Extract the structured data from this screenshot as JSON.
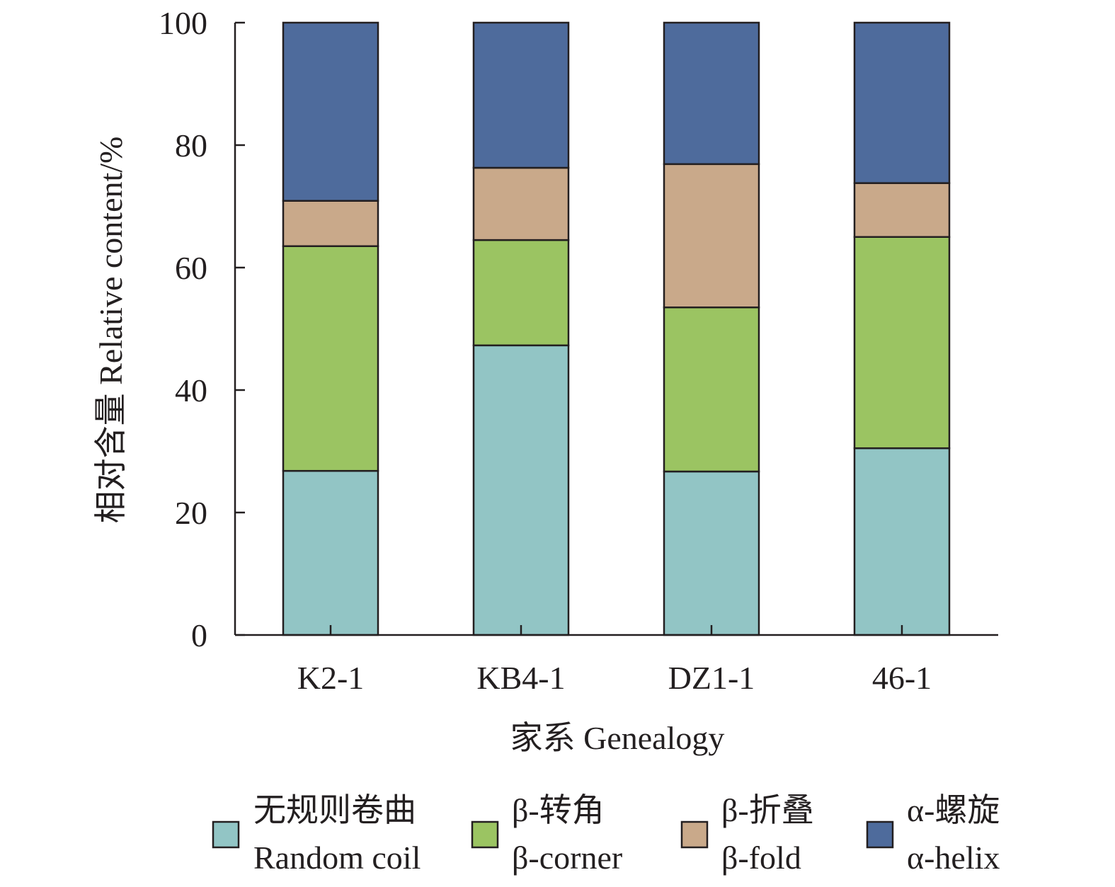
{
  "chart_data": {
    "type": "bar",
    "stacked": true,
    "categories": [
      "K2-1",
      "KB4-1",
      "DZ1-1",
      "46-1"
    ],
    "series": [
      {
        "name": "无规则卷曲 Random coil",
        "name_cn": "无规则卷曲",
        "name_en": "Random coil",
        "color": "#92c5c5",
        "values": [
          26.8,
          47.3,
          26.7,
          30.5
        ]
      },
      {
        "name": "β-转角 β-corner",
        "name_cn": "β-转角",
        "name_en": "β-corner",
        "color": "#9bc462",
        "values": [
          36.7,
          17.2,
          26.8,
          34.5
        ]
      },
      {
        "name": "β-折叠 β-fold",
        "name_cn": "β-折叠",
        "name_en": "β-fold",
        "color": "#c9a98a",
        "values": [
          7.4,
          11.8,
          23.4,
          8.8
        ]
      },
      {
        "name": "α-螺旋 α-helix",
        "name_cn": "α-螺旋",
        "name_en": "α-helix",
        "color": "#4e6b9c",
        "values": [
          29.1,
          23.7,
          23.1,
          26.2
        ]
      }
    ],
    "title": "",
    "xlabel": "家系 Genealogy",
    "ylabel": "相对含量 Relative content/%",
    "ylim": [
      0,
      100
    ],
    "yticks": [
      0,
      20,
      40,
      60,
      80,
      100
    ],
    "grid": false,
    "legend_position": "bottom"
  }
}
